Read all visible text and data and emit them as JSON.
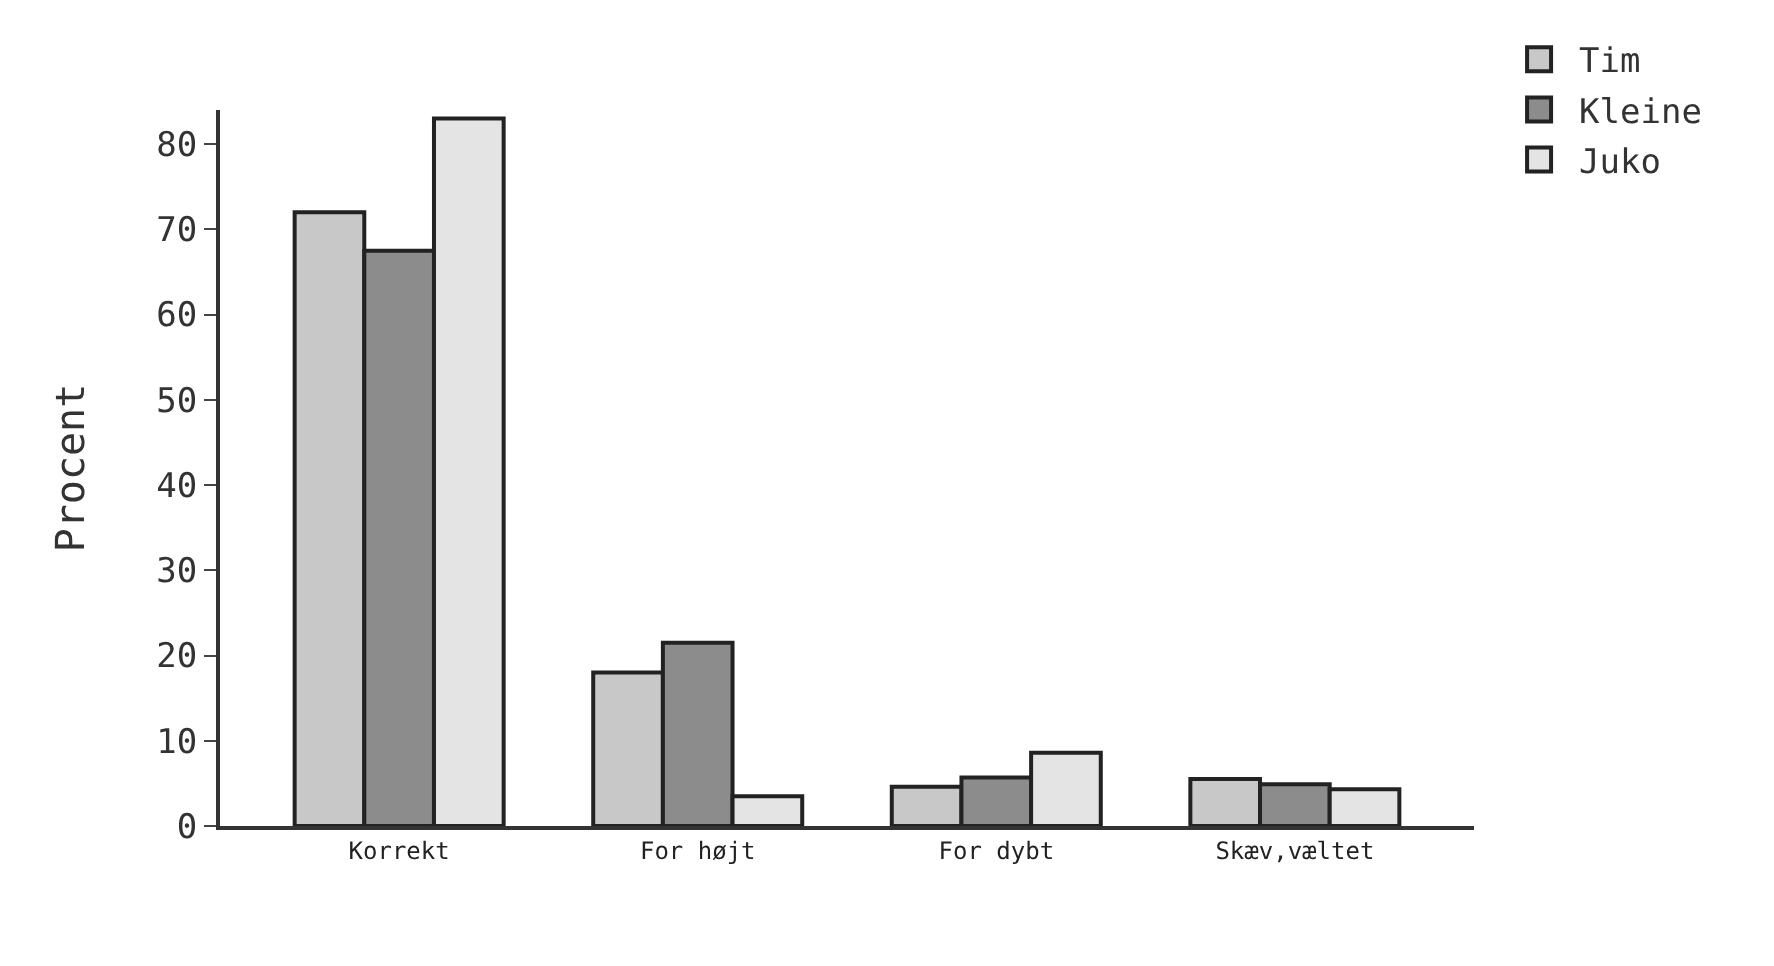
{
  "chart_data": {
    "type": "bar",
    "ylabel": "Procent",
    "categories": [
      "Korrekt",
      "For højt",
      "For dybt",
      "Skæv,væltet"
    ],
    "series": [
      {
        "name": "Tim",
        "color": "#c8c8c8",
        "values": [
          72,
          18,
          4.6,
          5.5
        ]
      },
      {
        "name": "Kleine",
        "color": "#8c8c8c",
        "values": [
          67.5,
          21.5,
          5.7,
          4.9
        ]
      },
      {
        "name": "Juko",
        "color": "#e4e4e4",
        "values": [
          83,
          3.5,
          8.6,
          4.3
        ]
      }
    ],
    "ylim": [
      0,
      84
    ],
    "yticks": [
      0,
      10,
      20,
      30,
      40,
      50,
      60,
      70,
      80
    ],
    "legend": "top right"
  }
}
